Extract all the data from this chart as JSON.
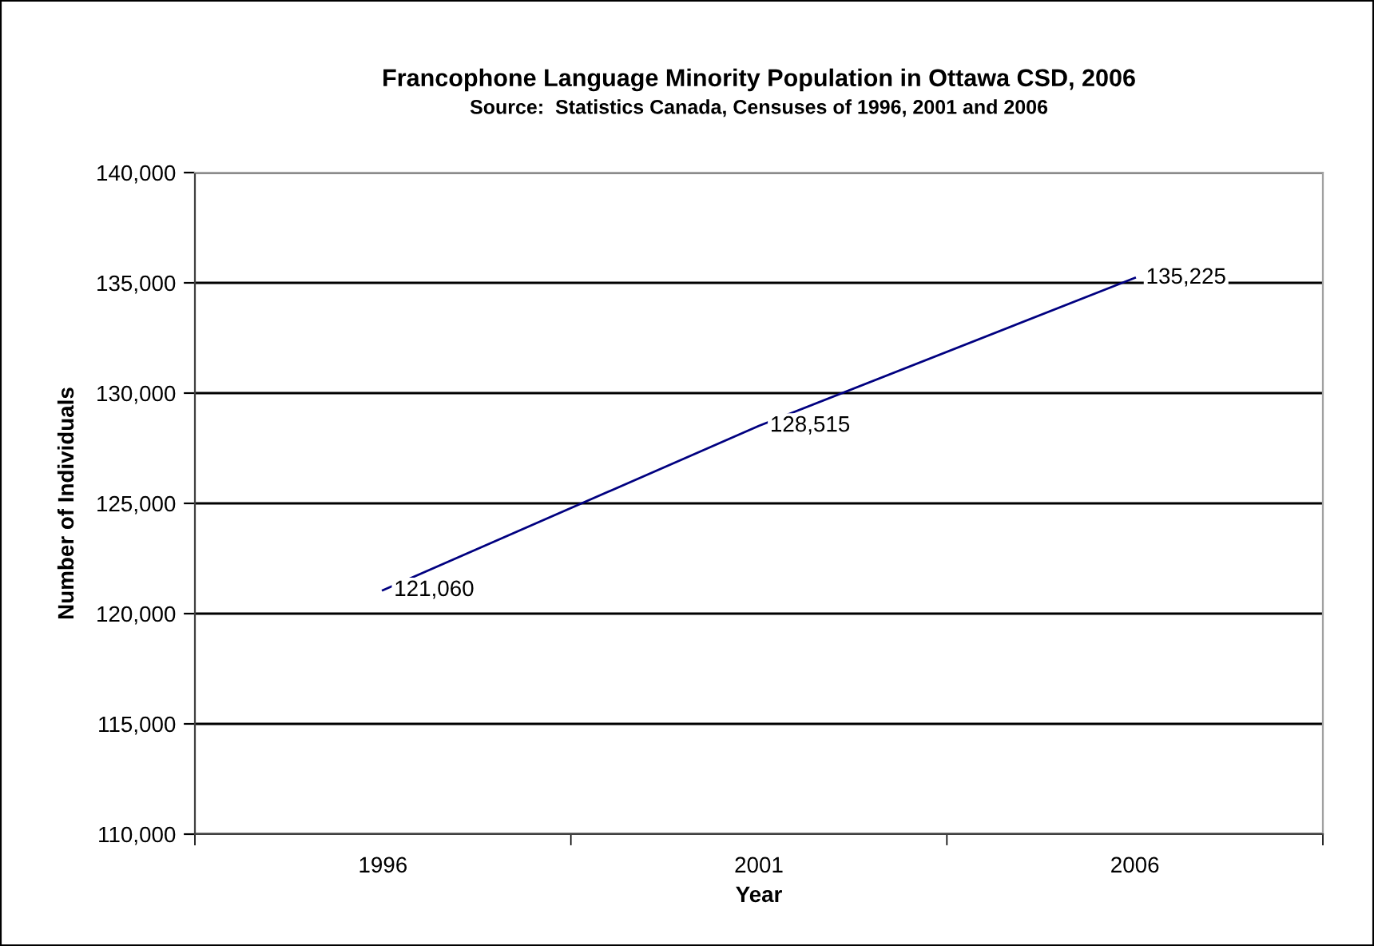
{
  "chart_data": {
    "type": "line",
    "title": "Francophone Language Minority Population in Ottawa CSD, 2006",
    "subtitle": "Source:  Statistics Canada, Censuses of 1996, 2001 and 2006",
    "xlabel": "Year",
    "ylabel": "Number of Individuals",
    "categories": [
      "1996",
      "2001",
      "2006"
    ],
    "series": [
      {
        "color": "#000080",
        "values": [
          121060,
          128515,
          135225
        ],
        "value_labels": [
          "121,060",
          "128,515",
          "135,225"
        ]
      }
    ],
    "ylim": [
      110000,
      140000
    ],
    "yticks": [
      {
        "value": 110000,
        "label": "110,000"
      },
      {
        "value": 115000,
        "label": "115,000"
      },
      {
        "value": 120000,
        "label": "120,000"
      },
      {
        "value": 125000,
        "label": "125,000"
      },
      {
        "value": 130000,
        "label": "130,000"
      },
      {
        "value": 135000,
        "label": "135,000"
      },
      {
        "value": 140000,
        "label": "140,000"
      }
    ],
    "grid": "y",
    "marker": "none",
    "line_style": "solid"
  }
}
